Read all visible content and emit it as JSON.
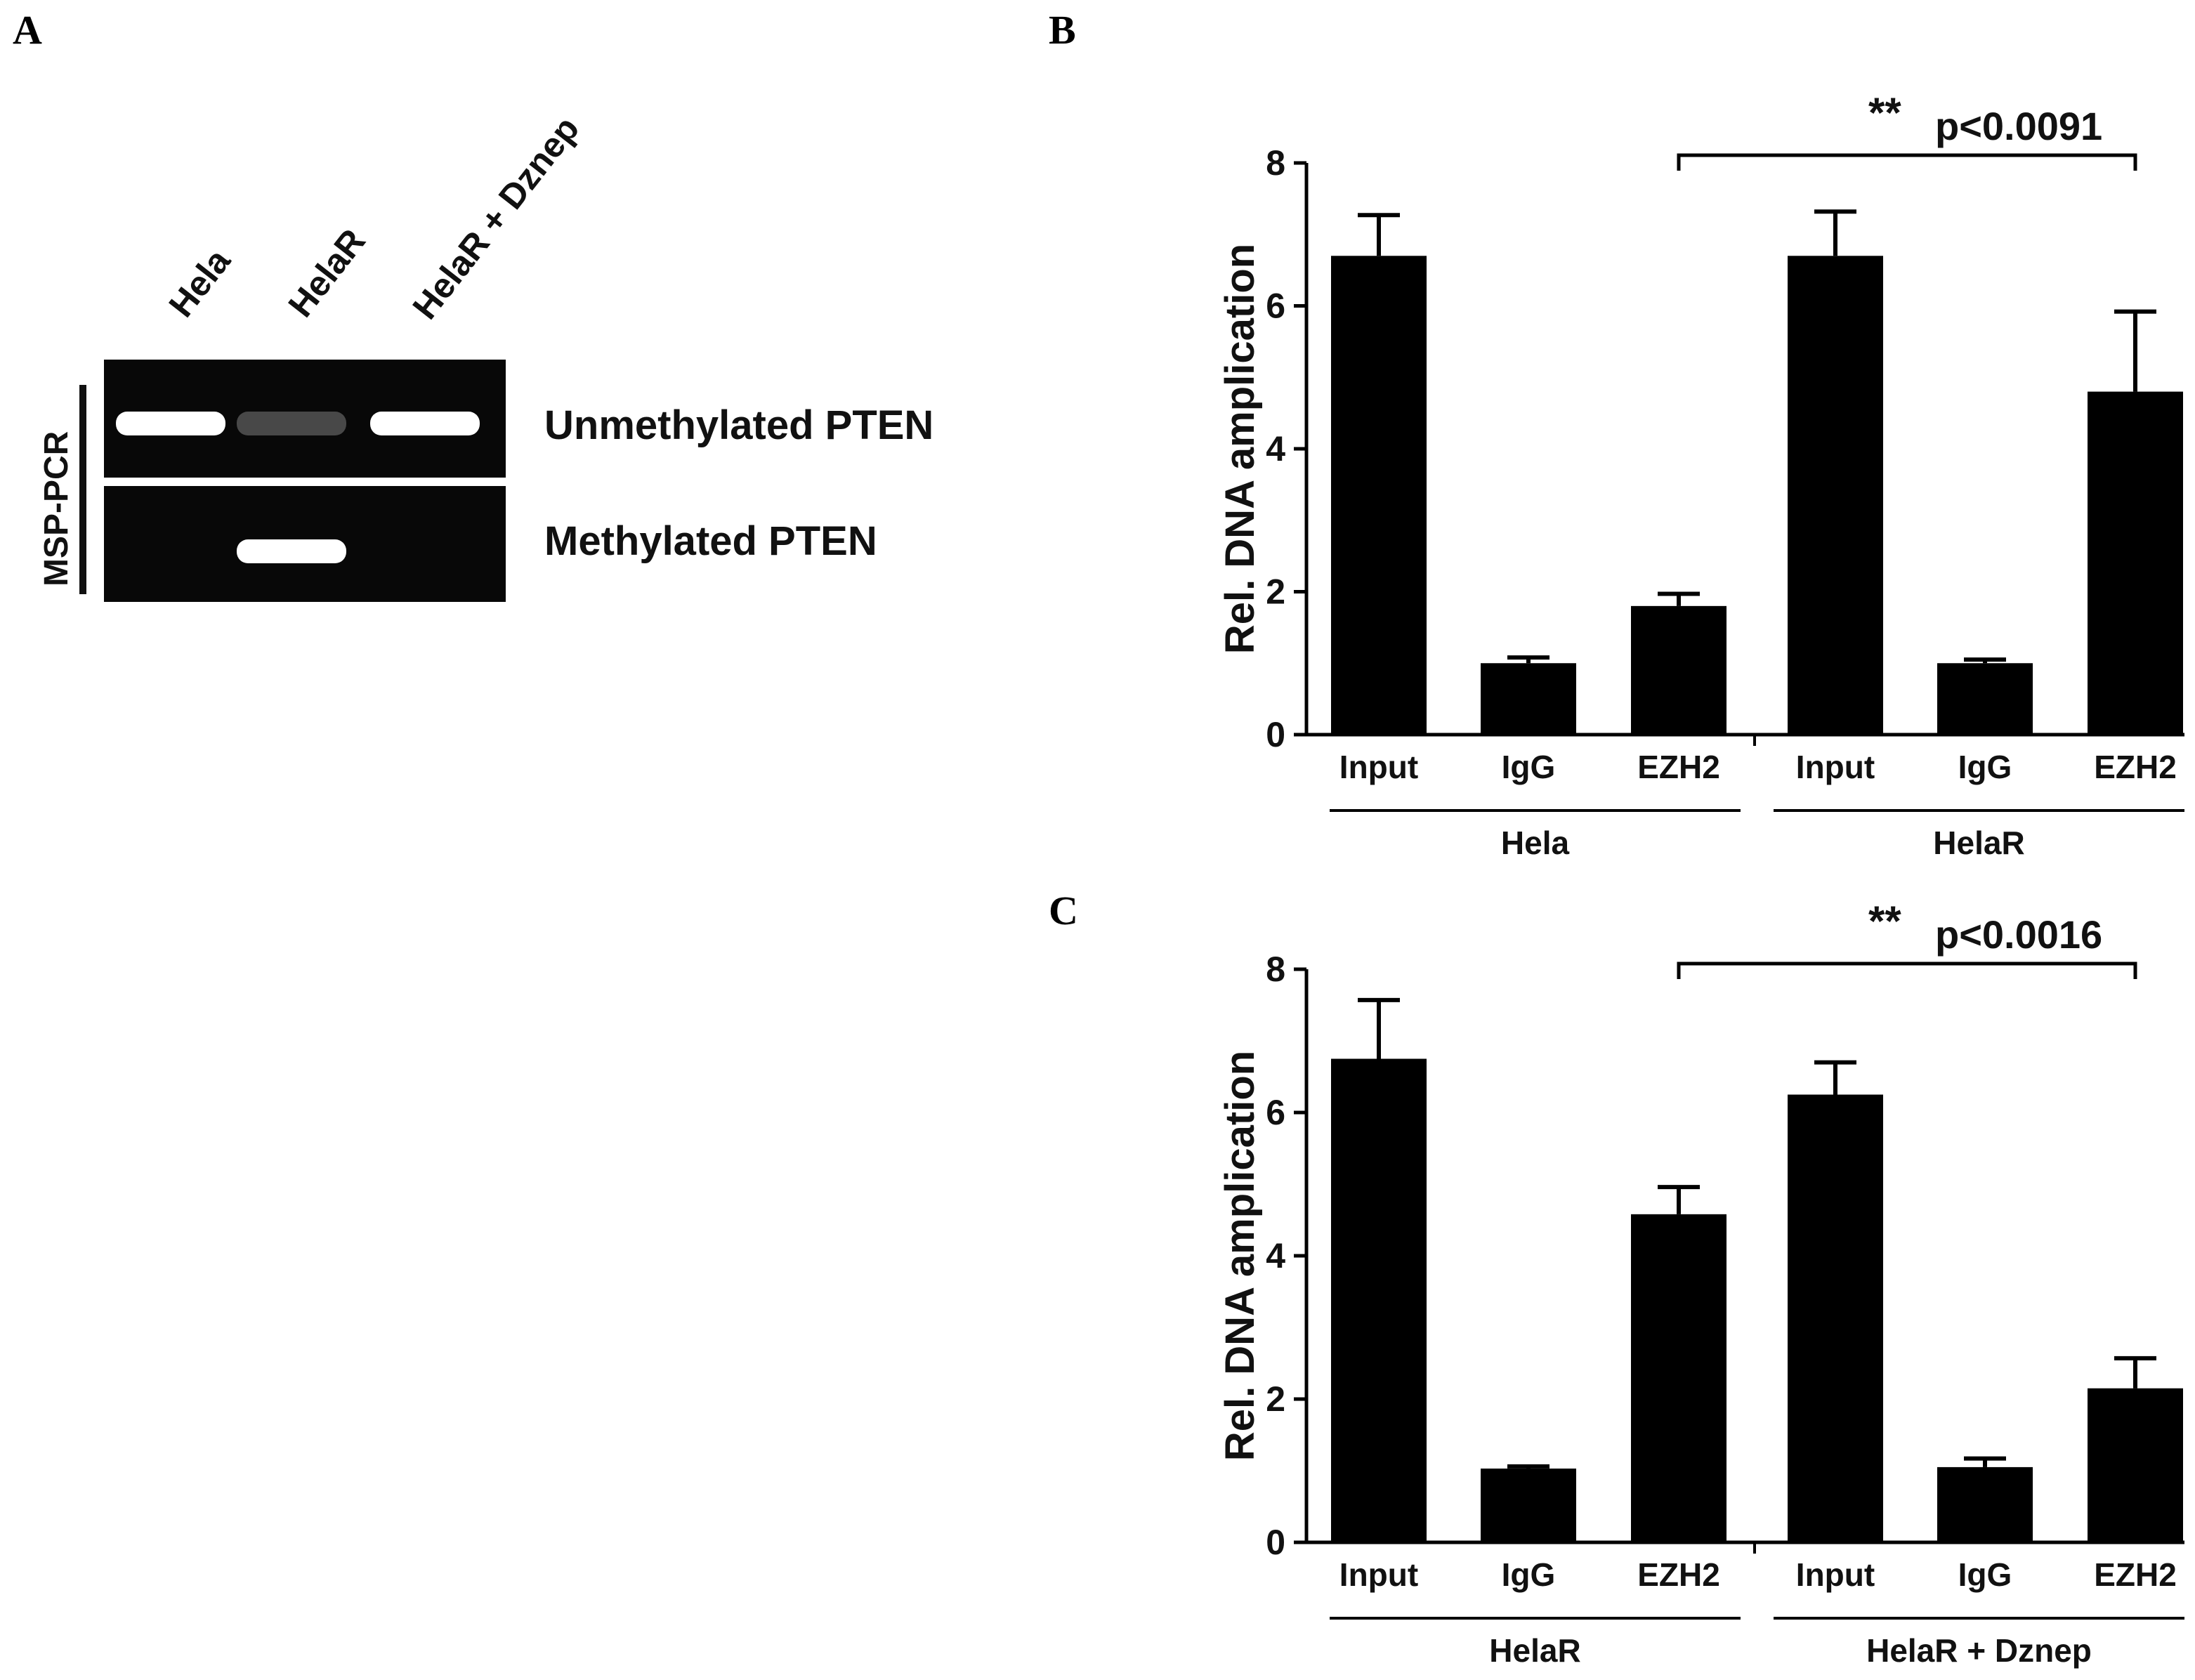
{
  "panel_a": {
    "letter": "A",
    "lanes": [
      "Hela",
      "HelaR",
      "HelaR + Dznep"
    ],
    "side_label": "MSP-PCR",
    "rows": [
      {
        "label": "Unmethylated PTEN",
        "bands": [
          1.0,
          0.15,
          1.0
        ]
      },
      {
        "label": "Methylated PTEN",
        "bands": [
          0.0,
          1.0,
          0.0
        ]
      }
    ]
  },
  "chart_data": [
    {
      "panel": "B",
      "type": "bar",
      "categories": [
        "Input",
        "IgG",
        "EZH2",
        "Input",
        "IgG",
        "EZH2"
      ],
      "groups": [
        "Hela",
        "HelaR"
      ],
      "values": [
        6.7,
        1.0,
        1.8,
        6.7,
        1.0,
        4.8
      ],
      "errors": [
        0.57,
        0.08,
        0.17,
        0.62,
        0.05,
        1.12
      ],
      "ylabel": "Rel. DNA amplication",
      "ylim": [
        0,
        8
      ],
      "yticks": [
        0,
        2,
        4,
        6,
        8
      ],
      "significance": {
        "stars": "**",
        "text": "p<0.0091",
        "from": 2,
        "to": 5
      },
      "color": "#000000"
    },
    {
      "panel": "C",
      "type": "bar",
      "categories": [
        "Input",
        "IgG",
        "EZH2",
        "Input",
        "IgG",
        "EZH2"
      ],
      "groups": [
        "HelaR",
        "HelaR + Dznep"
      ],
      "values": [
        6.75,
        1.03,
        4.58,
        6.25,
        1.05,
        2.15
      ],
      "errors": [
        0.82,
        0.03,
        0.38,
        0.45,
        0.12,
        0.42
      ],
      "ylabel": "Rel. DNA amplication",
      "ylim": [
        0,
        8
      ],
      "yticks": [
        0,
        2,
        4,
        6,
        8
      ],
      "significance": {
        "stars": "**",
        "text": "p<0.0016",
        "from": 2,
        "to": 5
      },
      "color": "#000000"
    }
  ]
}
